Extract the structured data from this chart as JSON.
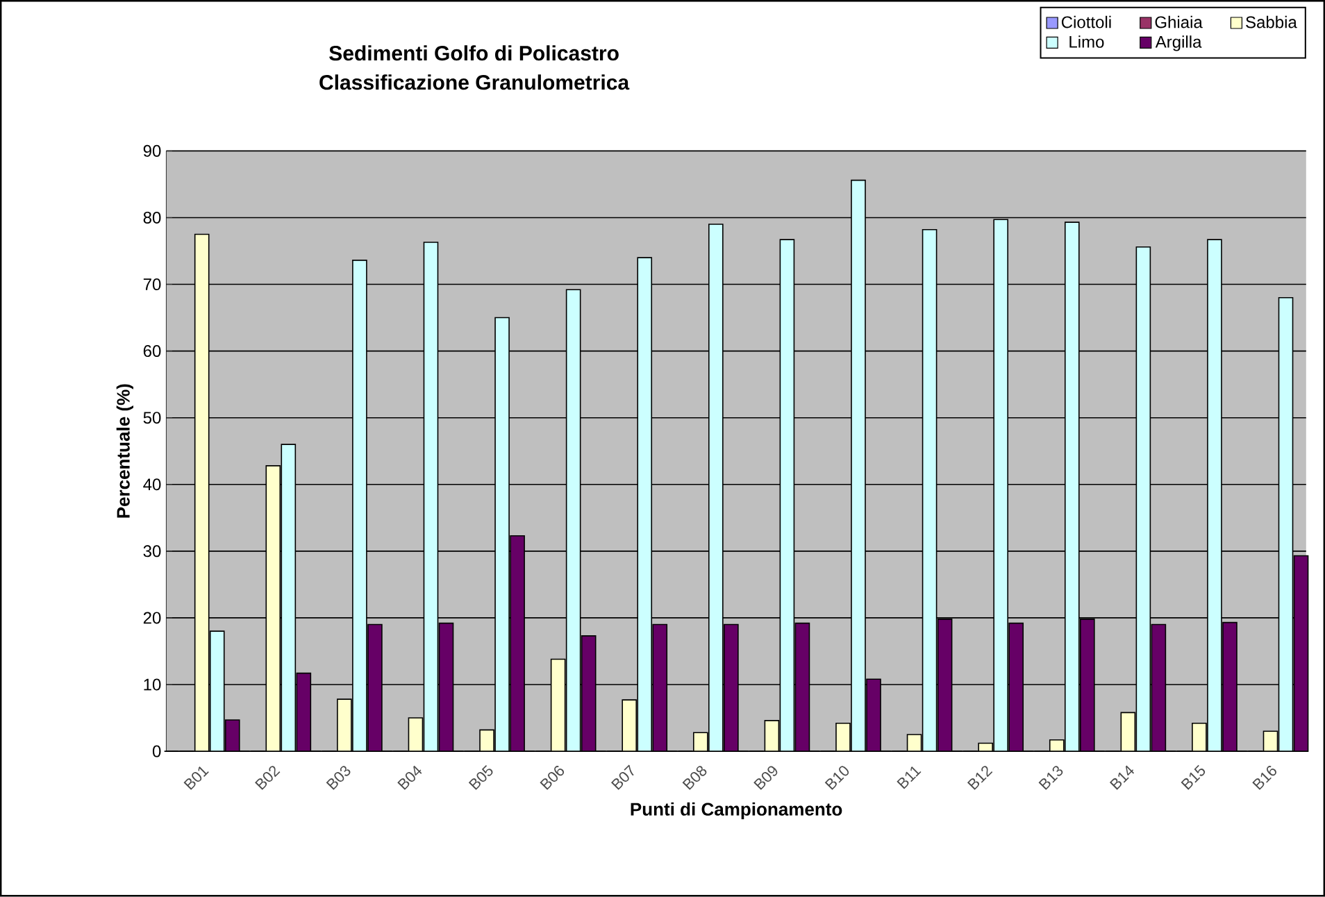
{
  "chart_data": {
    "type": "bar",
    "title": "Sedimenti Golfo di Policastro",
    "subtitle": "Classificazione Granulometrica",
    "xlabel": "Punti di Campionamento",
    "ylabel": "Percentuale (%)",
    "categories": [
      "B01",
      "B02",
      "B03",
      "B04",
      "B05",
      "B06",
      "B07",
      "B08",
      "B09",
      "B10",
      "B11",
      "B12",
      "B13",
      "B14",
      "B15",
      "B16"
    ],
    "series": [
      {
        "name": "Ciottoli",
        "color": "#9999ff",
        "values": [
          0,
          0,
          0,
          0,
          0,
          0,
          0,
          0,
          0,
          0,
          0,
          0,
          0,
          0,
          0,
          0
        ]
      },
      {
        "name": "Ghiaia",
        "color": "#993366",
        "values": [
          0,
          0,
          0,
          0,
          0,
          0,
          0,
          0,
          0,
          0,
          0,
          0,
          0,
          0,
          0,
          0
        ]
      },
      {
        "name": "Sabbia",
        "color": "#ffffcc",
        "values": [
          77.5,
          42.8,
          7.8,
          5,
          3.2,
          13.8,
          7.7,
          2.8,
          4.6,
          4.2,
          2.5,
          1.2,
          1.7,
          5.8,
          4.2,
          3
        ]
      },
      {
        "name": "Limo",
        "color": "#ccffff",
        "values": [
          18,
          46,
          73.6,
          76.3,
          65,
          69.2,
          74,
          79,
          76.7,
          85.6,
          78.2,
          79.7,
          79.3,
          75.6,
          76.7,
          68
        ]
      },
      {
        "name": "Argilla",
        "color": "#660066",
        "values": [
          4.7,
          11.7,
          19,
          19.2,
          32.3,
          17.3,
          19,
          19,
          19.2,
          10.8,
          19.8,
          19.2,
          19.8,
          19,
          19.3,
          29.3
        ]
      }
    ],
    "ylim": [
      0,
      90
    ],
    "yticks": [
      0,
      10,
      20,
      30,
      40,
      50,
      60,
      70,
      80,
      90
    ],
    "grid": "y",
    "legend": "top right"
  }
}
